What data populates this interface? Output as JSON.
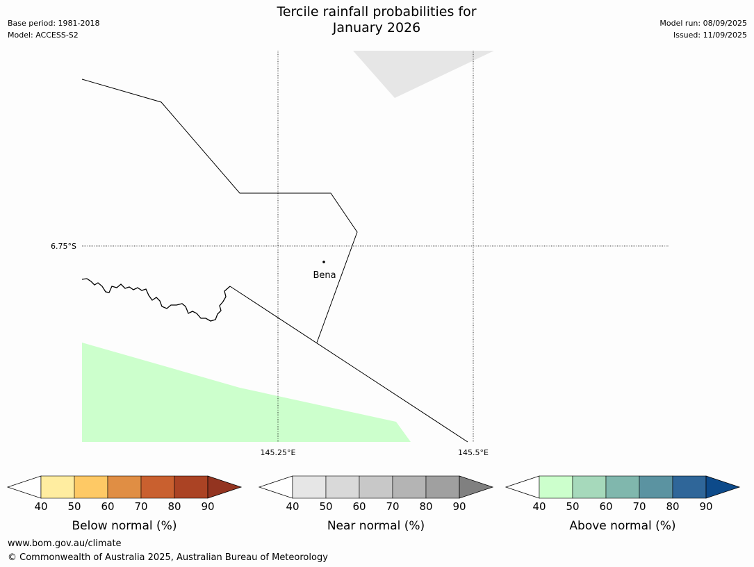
{
  "header": {
    "base_period": "Base period: 1981-2018",
    "model": "Model: ACCESS-S2",
    "title_line1": "Tercile rainfall probabilities for",
    "title_line2": "January 2026",
    "model_run": "Model run: 08/09/2025",
    "issued": "Issued: 11/09/2025"
  },
  "map": {
    "lat_label": "6.75°S",
    "lon_labels": [
      "145.25°E",
      "145.5°E"
    ],
    "place": "Bena",
    "shading": [
      {
        "category": "Near normal",
        "probability_bin": "40-50",
        "color": "#e6e6e6"
      },
      {
        "category": "Above normal",
        "probability_bin": "40-50",
        "color": "#ccffcc"
      }
    ]
  },
  "legends": [
    {
      "label": "Below normal (%)",
      "ticks": [
        "40",
        "50",
        "60",
        "70",
        "80",
        "90"
      ],
      "colors": [
        "#ffeda0",
        "#fec965",
        "#e08e44",
        "#c9602f",
        "#ab4324",
        "#933420"
      ]
    },
    {
      "label": "Near normal (%)",
      "ticks": [
        "40",
        "50",
        "60",
        "70",
        "80",
        "90"
      ],
      "colors": [
        "#e6e6e6",
        "#d9d9d9",
        "#c8c8c8",
        "#b4b4b4",
        "#a0a0a0",
        "#808080"
      ]
    },
    {
      "label": "Above normal (%)",
      "ticks": [
        "40",
        "50",
        "60",
        "70",
        "80",
        "90"
      ],
      "colors": [
        "#ccffcc",
        "#a6d9bb",
        "#80b7ad",
        "#5b93a1",
        "#2f6699",
        "#0d4a8a"
      ]
    }
  ],
  "footer": {
    "url": "www.bom.gov.au/climate",
    "copyright": "© Commonwealth of Australia 2025, Australian Bureau of Meteorology"
  }
}
